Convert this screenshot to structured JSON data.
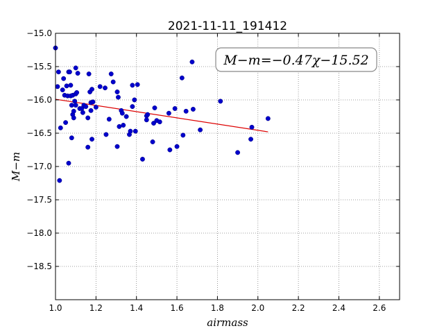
{
  "chart_data": {
    "type": "scatter",
    "title": "2021-11-11_191412",
    "xlabel": "airmass",
    "ylabel": "M−m",
    "xlim": [
      1.0,
      2.7
    ],
    "ylim": [
      -19.0,
      -15.0
    ],
    "y_inverted": true,
    "grid": true,
    "x_ticks": [
      1.0,
      1.2,
      1.4,
      1.6,
      1.8,
      2.0,
      2.2,
      2.4,
      2.6
    ],
    "x_tick_labels": [
      "1.0",
      "1.2",
      "1.4",
      "1.6",
      "1.8",
      "2.0",
      "2.2",
      "2.4",
      "2.6"
    ],
    "y_ticks": [
      -15.0,
      -15.5,
      -16.0,
      -16.5,
      -17.0,
      -17.5,
      -18.0,
      -18.5
    ],
    "y_tick_labels": [
      "−15.0",
      "−15.5",
      "−16.0",
      "−16.5",
      "−17.0",
      "−17.5",
      "−18.0",
      "−18.5"
    ],
    "annotation": "M−m=−0.47χ−15.52",
    "colors": {
      "points": "#0000cc",
      "fit_line": "#dd0000",
      "grid": "#808080"
    },
    "series": [
      {
        "kind": "points",
        "x": [
          1.0,
          1.01,
          1.015,
          1.02,
          1.025,
          1.035,
          1.04,
          1.045,
          1.05,
          1.055,
          1.06,
          1.065,
          1.065,
          1.07,
          1.075,
          1.075,
          1.08,
          1.08,
          1.085,
          1.085,
          1.09,
          1.09,
          1.095,
          1.1,
          1.1,
          1.1,
          1.105,
          1.11,
          1.12,
          1.13,
          1.135,
          1.14,
          1.15,
          1.16,
          1.16,
          1.165,
          1.17,
          1.175,
          1.175,
          1.18,
          1.18,
          1.185,
          1.2,
          1.22,
          1.245,
          1.25,
          1.265,
          1.275,
          1.285,
          1.305,
          1.305,
          1.31,
          1.315,
          1.325,
          1.33,
          1.335,
          1.35,
          1.365,
          1.37,
          1.38,
          1.38,
          1.39,
          1.395,
          1.405,
          1.43,
          1.45,
          1.45,
          1.455,
          1.48,
          1.485,
          1.49,
          1.5,
          1.515,
          1.56,
          1.565,
          1.59,
          1.6,
          1.625,
          1.63,
          1.645,
          1.675,
          1.68,
          1.715,
          1.815,
          1.9,
          1.965,
          1.97,
          2.05
        ],
        "y": [
          -15.22,
          -15.8,
          -15.58,
          -17.21,
          -16.42,
          -15.85,
          -15.68,
          -15.93,
          -16.34,
          -15.79,
          -15.94,
          -15.58,
          -16.95,
          -15.58,
          -15.78,
          -15.94,
          -16.57,
          -16.08,
          -16.22,
          -15.93,
          -16.27,
          -16.17,
          -16.02,
          -15.52,
          -15.91,
          -16.08,
          -15.89,
          -15.6,
          -16.13,
          -16.13,
          -16.19,
          -16.08,
          -16.1,
          -16.27,
          -16.71,
          -15.61,
          -15.88,
          -16.16,
          -16.04,
          -15.84,
          -16.59,
          -16.03,
          -16.11,
          -15.8,
          -15.82,
          -16.52,
          -16.29,
          -15.61,
          -15.73,
          -16.7,
          -15.88,
          -15.96,
          -16.4,
          -16.16,
          -16.2,
          -16.38,
          -16.25,
          -16.52,
          -16.47,
          -16.1,
          -15.78,
          -16.0,
          -16.47,
          -15.77,
          -16.89,
          -16.24,
          -16.3,
          -16.22,
          -16.63,
          -16.35,
          -16.12,
          -16.31,
          -16.33,
          -16.2,
          -16.75,
          -16.13,
          -16.7,
          -15.67,
          -16.53,
          -16.17,
          -15.43,
          -16.14,
          -16.45,
          -16.02,
          -16.79,
          -16.59,
          -16.41,
          -16.28
        ]
      },
      {
        "kind": "fit_line",
        "x": [
          1.0,
          2.05
        ],
        "y": [
          -15.99,
          -16.48
        ]
      }
    ]
  }
}
